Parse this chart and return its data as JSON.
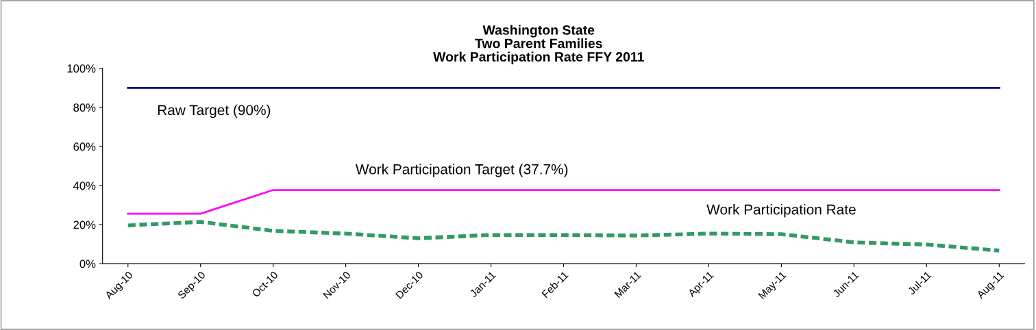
{
  "chart_data": {
    "type": "line",
    "title": "Washington State\nTwo Parent Families\nWork Participation Rate FFY 2011",
    "categories": [
      "Aug-10",
      "Sep-10",
      "Oct-10",
      "Nov-10",
      "Dec-10",
      "Jan-11",
      "Feb-11",
      "Mar-11",
      "Apr-11",
      "May-11",
      "Jun-11",
      "Jul-11",
      "Aug-11"
    ],
    "series": [
      {
        "name": "Raw Target (90%)",
        "color": "#000080",
        "line_style": "solid",
        "values": [
          90,
          90,
          90,
          90,
          90,
          90,
          90,
          90,
          90,
          90,
          90,
          90,
          90
        ]
      },
      {
        "name": "Work Participation Target (37.7%)",
        "color": "#ff00ff",
        "line_style": "solid",
        "values": [
          25.6,
          25.6,
          37.7,
          37.7,
          37.7,
          37.7,
          37.7,
          37.7,
          37.7,
          37.7,
          37.7,
          37.7,
          37.7
        ]
      },
      {
        "name": "Work Participation Rate",
        "color": "#339966",
        "line_style": "dashed",
        "values": [
          19.6,
          21.4,
          16.8,
          15.4,
          13,
          14.7,
          14.7,
          14.4,
          15.4,
          15.1,
          10.9,
          9.8,
          6.7
        ]
      }
    ],
    "ylim": [
      0,
      100
    ],
    "yticks": [
      {
        "value": 0,
        "label": "0%"
      },
      {
        "value": 20,
        "label": "20%"
      },
      {
        "value": 40,
        "label": "40%"
      },
      {
        "value": 60,
        "label": "60%"
      },
      {
        "value": 80,
        "label": "80%"
      },
      {
        "value": 100,
        "label": "100%"
      }
    ],
    "grid": false,
    "legend": false,
    "marker": "none"
  }
}
